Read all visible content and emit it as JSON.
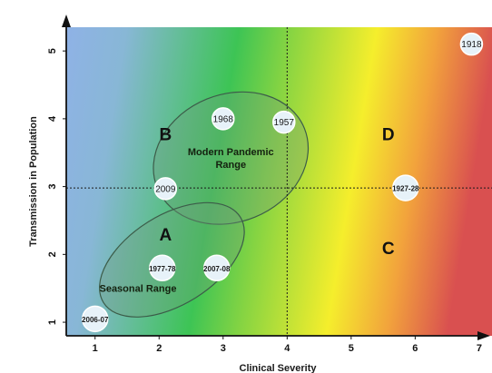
{
  "chart_data": {
    "type": "scatter",
    "xlabel": "Clinical Severity",
    "ylabel": "Transmission in Population",
    "xlim": [
      0.55,
      7.2
    ],
    "ylim": [
      0.8,
      5.35
    ],
    "x_ticks": [
      "1",
      "2",
      "3",
      "4",
      "5",
      "6",
      "7"
    ],
    "y_ticks": [
      "1",
      "2",
      "3",
      "4",
      "5"
    ],
    "dividers": {
      "x": 4,
      "y": 2.98
    },
    "quadrant_labels": [
      {
        "text": "A",
        "x": 2.1,
        "y": 2.3
      },
      {
        "text": "B",
        "x": 2.1,
        "y": 3.78
      },
      {
        "text": "C",
        "x": 5.58,
        "y": 2.1
      },
      {
        "text": "D",
        "x": 5.58,
        "y": 3.78
      }
    ],
    "regions": [
      {
        "name": "Modern Pandemic Range",
        "lines": [
          "Modern Pandemic",
          "Range"
        ],
        "cx": 3.12,
        "cy": 3.42,
        "rx": 1.24,
        "ry": 0.94,
        "label_x": 3.12,
        "label_y": 3.42
      },
      {
        "name": "Seasonal Range",
        "lines": [
          "Seasonal Range"
        ],
        "cx": 2.2,
        "cy": 1.92,
        "rx": 1.26,
        "ry": 0.66,
        "label_x": 1.67,
        "label_y": 1.5
      }
    ],
    "points": [
      {
        "label": "1918",
        "x": 6.88,
        "y": 5.1
      },
      {
        "label": "1968",
        "x": 3.0,
        "y": 4.0
      },
      {
        "label": "1957",
        "x": 3.95,
        "y": 3.95
      },
      {
        "label": "2009",
        "x": 2.1,
        "y": 2.97
      },
      {
        "label": "1927-28",
        "x": 5.85,
        "y": 2.98
      },
      {
        "label": "1977-78",
        "x": 2.05,
        "y": 1.8
      },
      {
        "label": "2007-08",
        "x": 2.9,
        "y": 1.8
      },
      {
        "label": "2006-07",
        "x": 1.0,
        "y": 1.05
      }
    ],
    "colors": {
      "low_severity": "#8fb2e6",
      "moderate": "#3dc455",
      "high": "#f5ee2c",
      "severe": "#d95050",
      "point_fill": "#e7f2f9",
      "region_fill": "#6f9a7c"
    }
  }
}
